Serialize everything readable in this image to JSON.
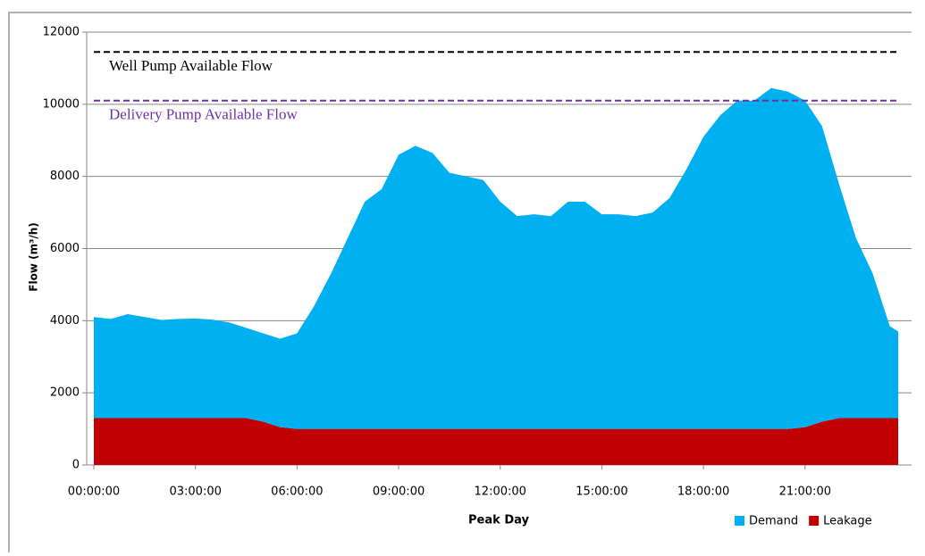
{
  "chart_data": {
    "type": "stacked-area",
    "ylabel": "Flow (m³/h)",
    "xlabel": "Peak Day",
    "x": [
      0,
      0.5,
      1,
      1.5,
      2,
      2.5,
      3,
      3.5,
      4,
      4.5,
      5,
      5.5,
      6,
      6.5,
      7,
      7.5,
      8,
      8.5,
      9,
      9.5,
      10,
      10.5,
      11,
      11.5,
      12,
      12.5,
      13,
      13.5,
      14,
      14.5,
      15,
      15.5,
      16,
      16.5,
      17,
      17.5,
      18,
      18.5,
      19,
      19.5,
      20,
      20.5,
      21,
      21.5,
      22,
      22.5,
      23,
      23.5,
      23.75
    ],
    "series": [
      {
        "name": "Demand",
        "color": "#00b0f0",
        "values": [
          2800,
          2750,
          2880,
          2800,
          2720,
          2750,
          2760,
          2730,
          2650,
          2500,
          2450,
          2450,
          2650,
          3400,
          4300,
          5300,
          6300,
          6650,
          7600,
          7850,
          7650,
          7100,
          7000,
          6900,
          6300,
          5900,
          5950,
          5900,
          6300,
          6300,
          5950,
          5950,
          5900,
          6000,
          6400,
          7200,
          8100,
          8700,
          9100,
          9100,
          9450,
          9350,
          9050,
          8200,
          6500,
          5000,
          4000,
          2550,
          2400
        ]
      },
      {
        "name": "Leakage",
        "color": "#c00000",
        "values": [
          1300,
          1300,
          1300,
          1300,
          1300,
          1300,
          1300,
          1300,
          1300,
          1300,
          1200,
          1050,
          1000,
          1000,
          1000,
          1000,
          1000,
          1000,
          1000,
          1000,
          1000,
          1000,
          1000,
          1000,
          1000,
          1000,
          1000,
          1000,
          1000,
          1000,
          1000,
          1000,
          1000,
          1000,
          1000,
          1000,
          1000,
          1000,
          1000,
          1000,
          1000,
          1000,
          1050,
          1200,
          1300,
          1300,
          1300,
          1300,
          1300
        ]
      }
    ],
    "reference_lines": [
      {
        "name": "Well Pump Available Flow",
        "value": 11450,
        "color": "#000000"
      },
      {
        "name": "Delivery Pump Available Flow",
        "value": 10100,
        "color": "#7030a0"
      }
    ],
    "xlim": [
      0,
      23.75
    ],
    "xticks": [
      {
        "value": 0,
        "label": "00:00:00"
      },
      {
        "value": 3,
        "label": "03:00:00"
      },
      {
        "value": 6,
        "label": "06:00:00"
      },
      {
        "value": 9,
        "label": "09:00:00"
      },
      {
        "value": 12,
        "label": "12:00:00"
      },
      {
        "value": 15,
        "label": "15:00:00"
      },
      {
        "value": 18,
        "label": "18:00:00"
      },
      {
        "value": 21,
        "label": "21:00:00"
      }
    ],
    "ylim": [
      0,
      12000
    ],
    "yticks": [
      0,
      2000,
      4000,
      6000,
      8000,
      10000,
      12000
    ],
    "grid": true,
    "legend": "bottom-right"
  }
}
